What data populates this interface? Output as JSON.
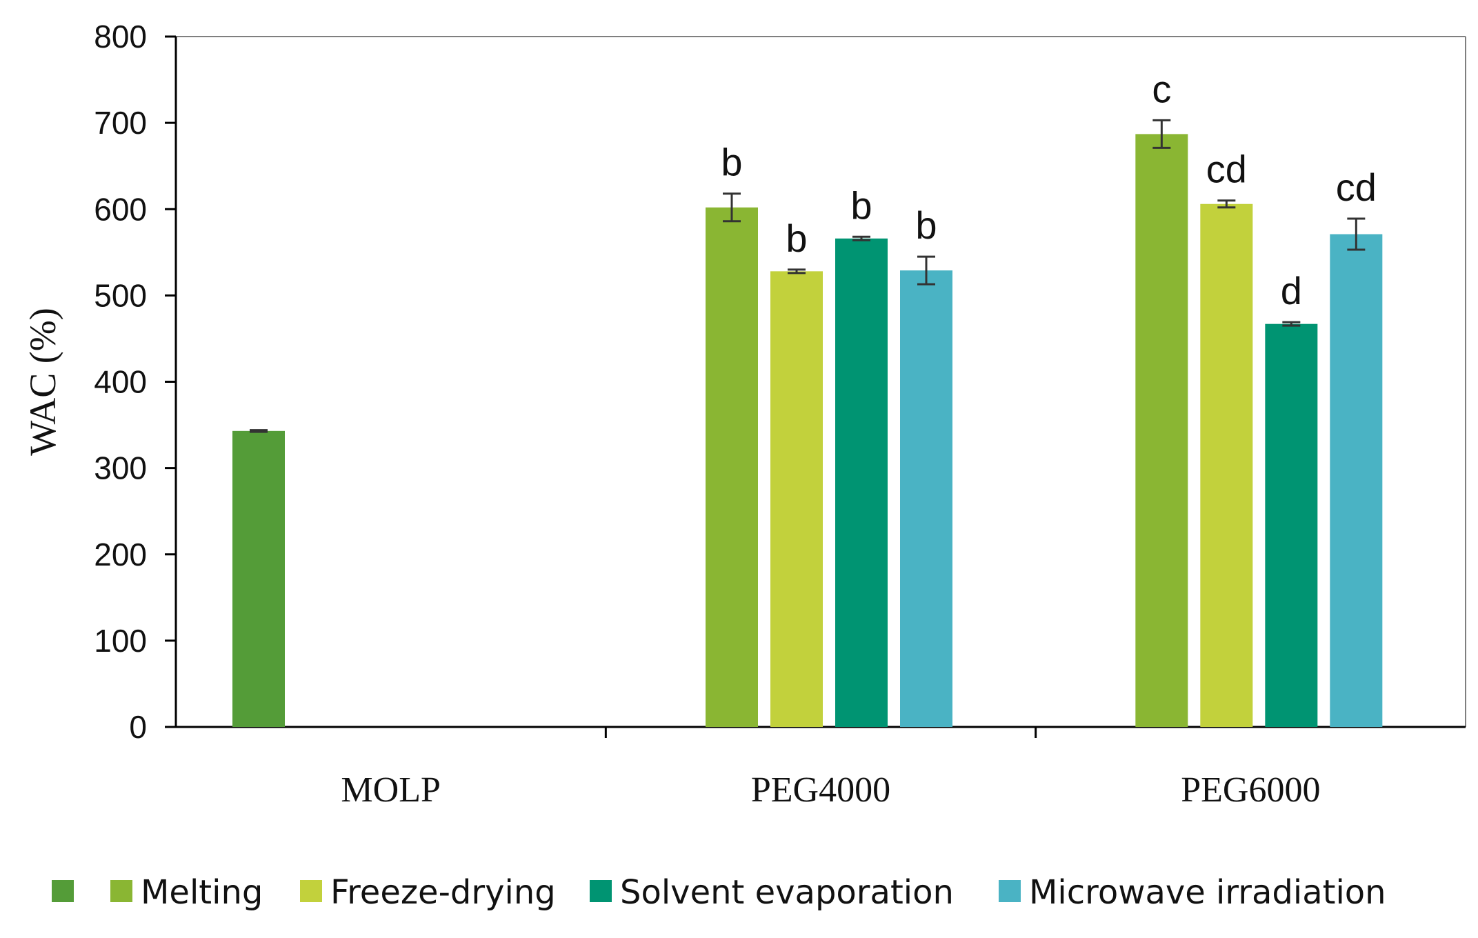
{
  "chart_data": {
    "type": "bar",
    "title": "",
    "xlabel": "",
    "ylabel": "WAC (%)",
    "ylim": [
      0,
      800
    ],
    "yticks": [
      0,
      100,
      200,
      300,
      400,
      500,
      600,
      700,
      800
    ],
    "grid": false,
    "legend_position": "bottom",
    "categories": [
      "MOLP",
      "PEG4000",
      "PEG6000"
    ],
    "series": [
      {
        "name": "",
        "color": "#549c38",
        "values": [
          343,
          null,
          null
        ],
        "errors": [
          1,
          null,
          null
        ],
        "labels": [
          "",
          "",
          ""
        ]
      },
      {
        "name": "Melting",
        "color": "#8ab633",
        "values": [
          null,
          602,
          687
        ],
        "errors": [
          null,
          16,
          16
        ],
        "labels": [
          "",
          "b",
          "c"
        ]
      },
      {
        "name": "Freeze-drying",
        "color": "#c2d13c",
        "values": [
          null,
          528,
          606
        ],
        "errors": [
          null,
          2,
          4
        ],
        "labels": [
          "",
          "b",
          "cd"
        ]
      },
      {
        "name": "Solvent evaporation",
        "color": "#009472",
        "values": [
          null,
          566,
          467
        ],
        "errors": [
          null,
          2,
          2
        ],
        "labels": [
          "",
          "b",
          "d"
        ]
      },
      {
        "name": "Microwave irradiation",
        "color": "#4ab3c4",
        "values": [
          null,
          529,
          571
        ],
        "errors": [
          null,
          16,
          18
        ],
        "labels": [
          "",
          "b",
          "cd"
        ]
      }
    ]
  }
}
